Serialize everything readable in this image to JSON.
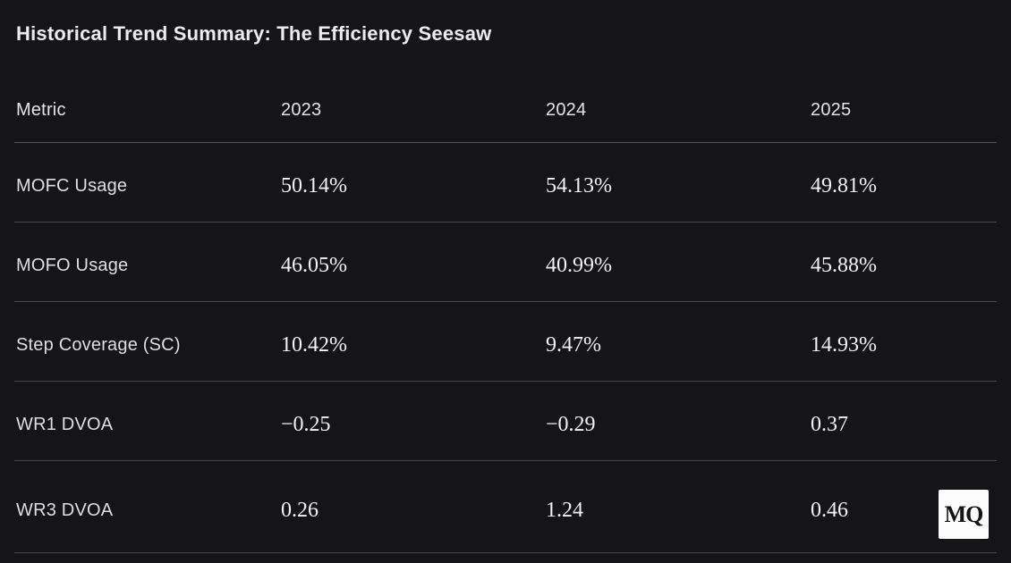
{
  "title": "Historical Trend Summary: The Efficiency Seesaw",
  "chart_data": {
    "type": "table",
    "title": "Historical Trend Summary: The Efficiency Seesaw",
    "columns": [
      "Metric",
      "2023",
      "2024",
      "2025"
    ],
    "rows": [
      [
        "MOFC Usage",
        "50.14%",
        "54.13%",
        "49.81%"
      ],
      [
        "MOFO Usage",
        "46.05%",
        "40.99%",
        "45.88%"
      ],
      [
        "Step Coverage (SC)",
        "10.42%",
        "9.47%",
        "14.93%"
      ],
      [
        "WR1 DVOA",
        "−0.25",
        "−0.29",
        "0.37"
      ],
      [
        "WR3 DVOA",
        "0.26",
        "1.24",
        "0.46"
      ]
    ]
  },
  "badge": {
    "label": "MQ"
  },
  "colors": {
    "background": "#151517",
    "title_text": "#ececee",
    "label_text": "#dfdfe1",
    "value_text": "#f3f3f4",
    "divider": "#47474b",
    "badge_background": "#fcfcfc",
    "badge_text": "#141414"
  }
}
